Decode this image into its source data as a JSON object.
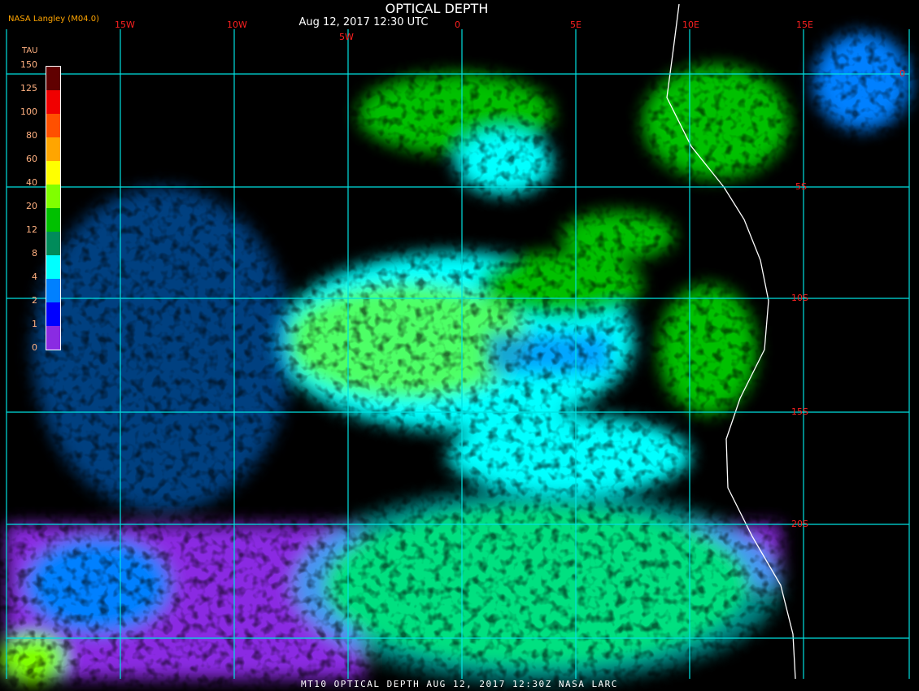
{
  "title": "OPTICAL DEPTH",
  "subtitle": "Aug 12, 2017 12:30 UTC",
  "credit": "NASA Langley (M04.0)",
  "footer": "MT10  OPTICAL DEPTH   AUG 12, 2017 12:30Z   NASA LARC",
  "longitude_labels": [
    "15W",
    "10W",
    "5W",
    "0",
    "5E",
    "10E",
    "15E"
  ],
  "latitude_labels": [
    "0",
    "5S",
    "10S",
    "15S",
    "20S"
  ],
  "colorbar": {
    "label": "TAU",
    "ticks": [
      "0",
      "1",
      "2",
      "4",
      "8",
      "12",
      "20",
      "40",
      "60",
      "80",
      "100",
      "125",
      "150"
    ],
    "colors": [
      "#8a2be2",
      "#0000ff",
      "#0080ff",
      "#00ffff",
      "#008b5a",
      "#00c000",
      "#80ff00",
      "#ffff00",
      "#ffa500",
      "#ff5000",
      "#f00000",
      "#600000"
    ]
  },
  "colors": {
    "grid": "#00e0e0",
    "labels": "#ff2020",
    "coastline": "#ffffff"
  }
}
